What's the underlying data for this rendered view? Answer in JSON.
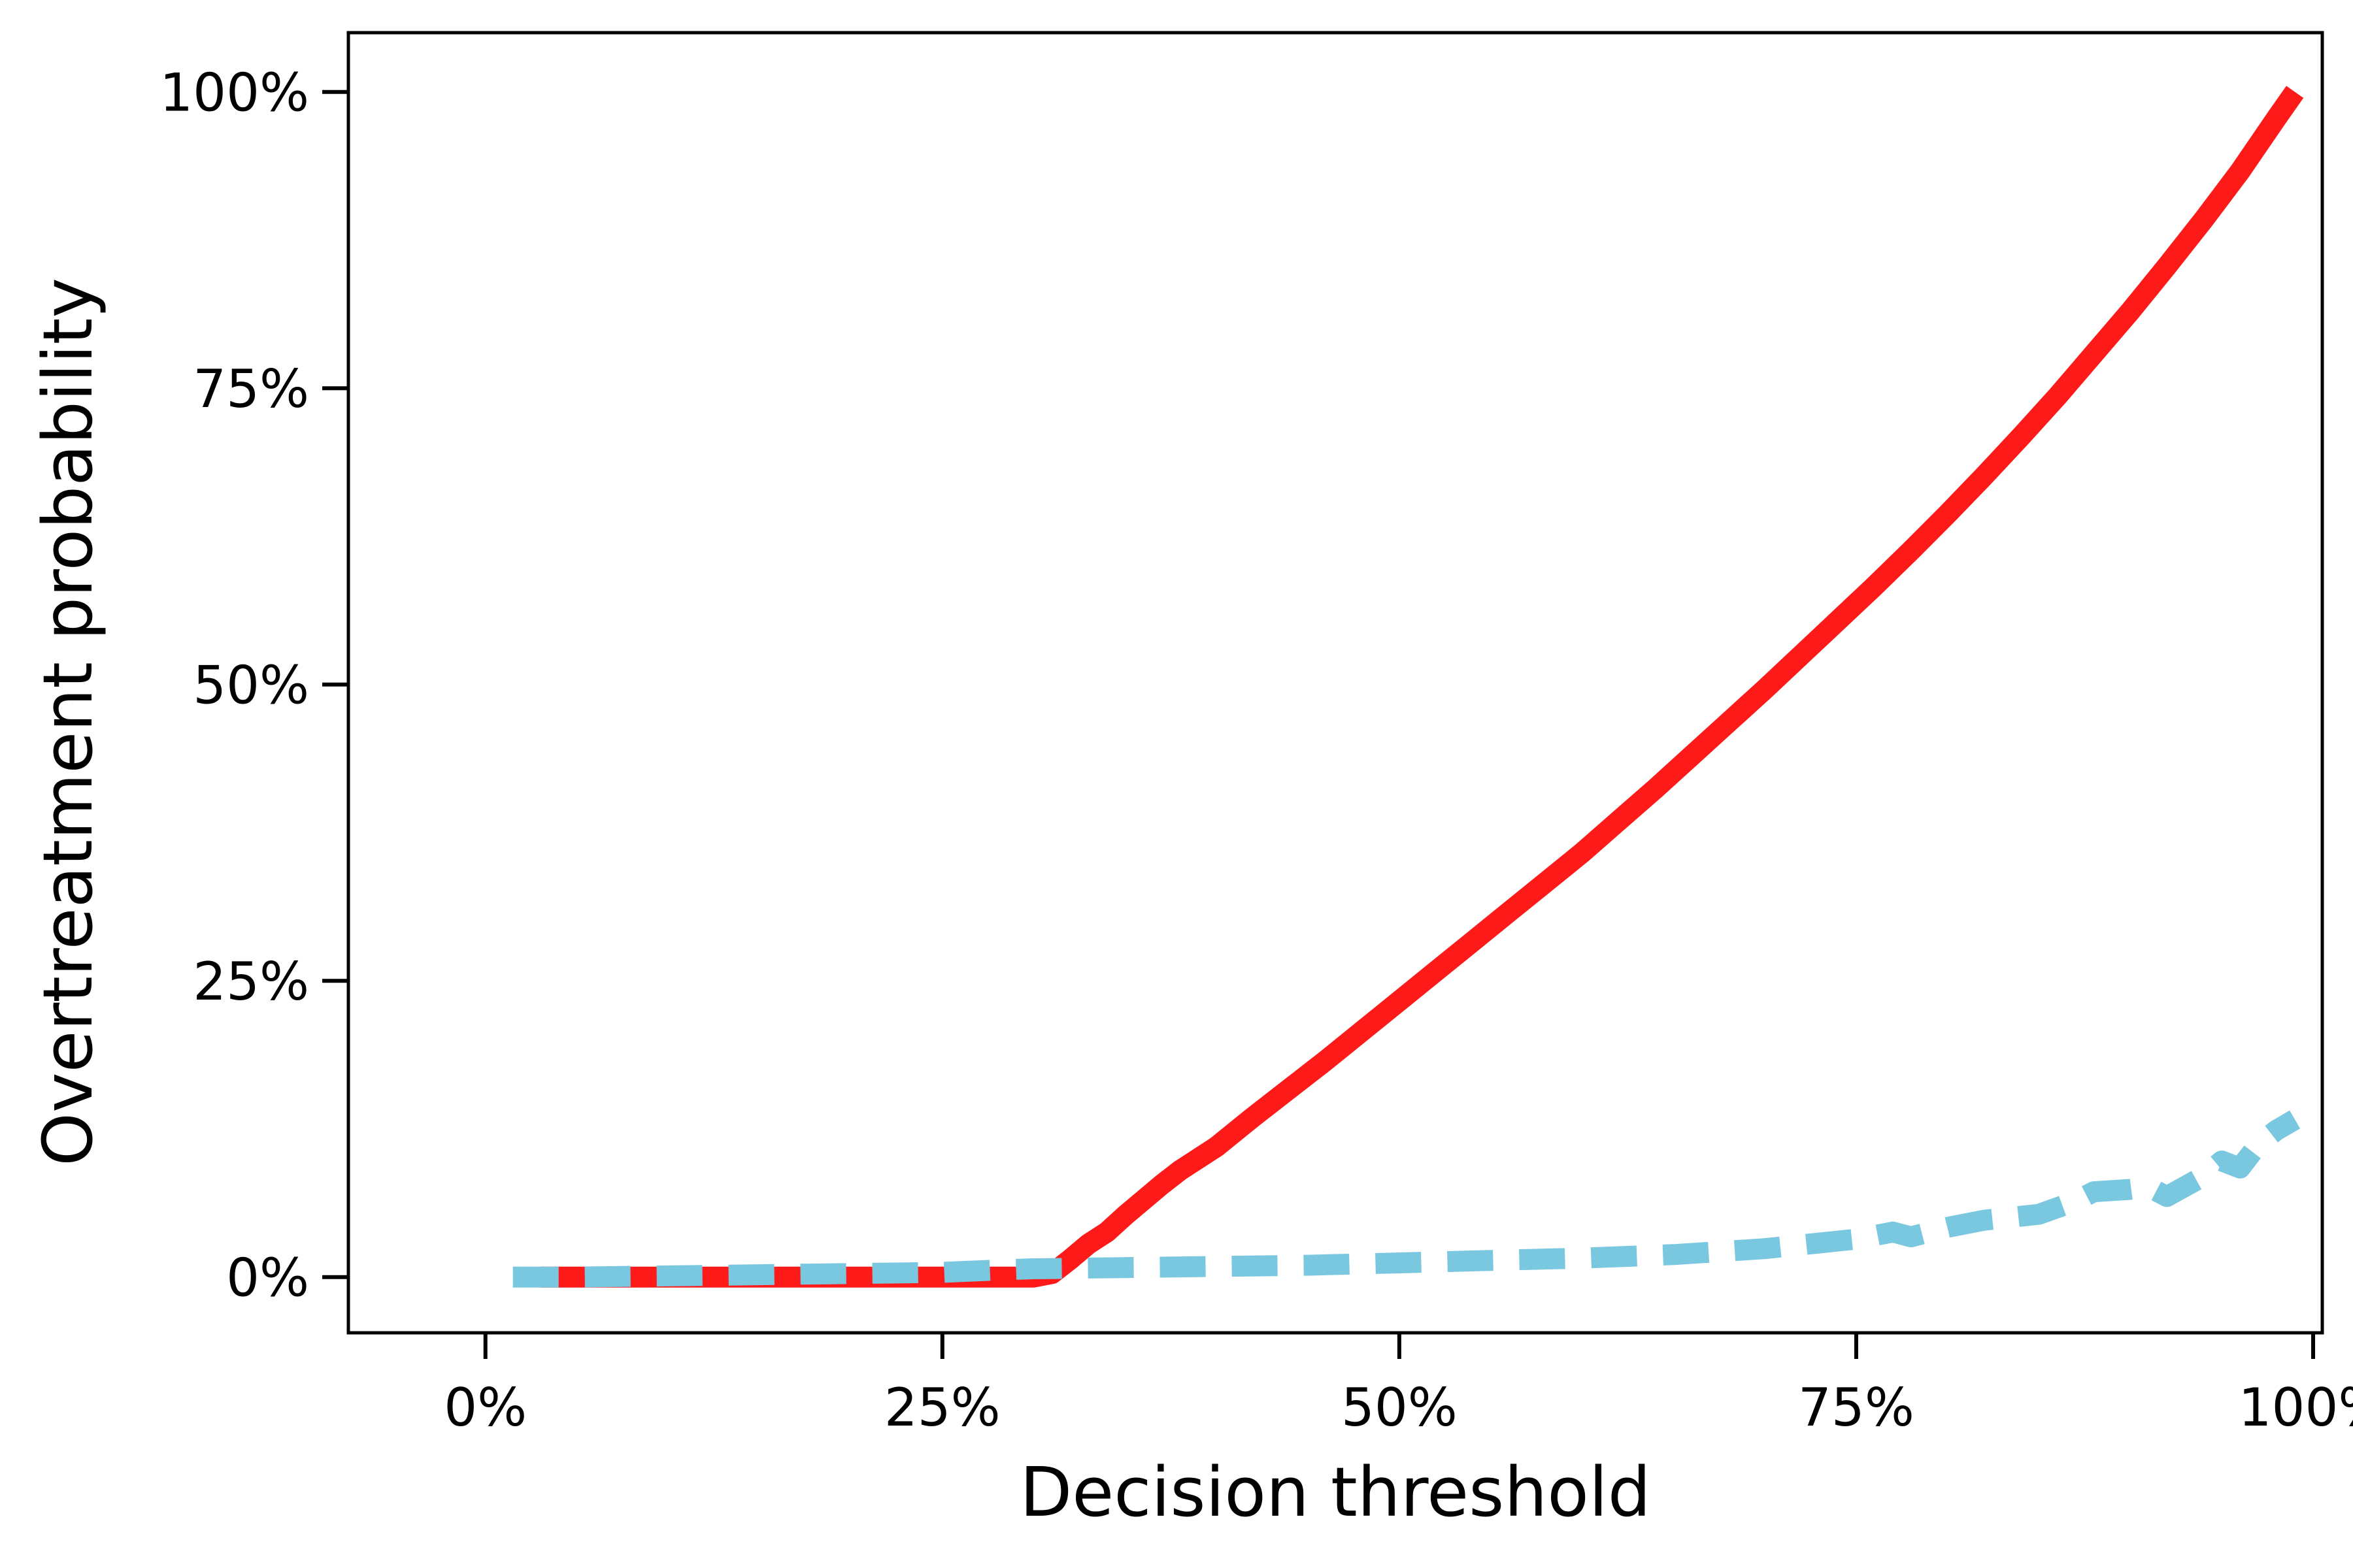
{
  "chart_data": {
    "type": "line",
    "title": "",
    "xlabel": "Decision threshold",
    "ylabel": "Overtreatment  probability",
    "xlim": [
      -7.5,
      100.5
    ],
    "ylim": [
      -4.7,
      105
    ],
    "xticks": [
      0,
      25,
      50,
      75,
      100
    ],
    "xtick_labels": [
      "0%",
      "25%",
      "50%",
      "75%",
      "100%"
    ],
    "yticks": [
      0,
      25,
      50,
      75,
      100
    ],
    "ytick_labels": [
      "0%",
      "25%",
      "50%",
      "75%",
      "100%"
    ],
    "grid": false,
    "series": [
      {
        "color": "#ff1a1a",
        "dashed": false,
        "x": [
          3,
          5,
          10,
          15,
          20,
          25,
          30,
          31,
          32,
          33,
          34,
          35,
          36,
          37,
          38,
          40,
          42,
          44,
          46,
          48,
          50,
          52,
          54,
          56,
          58,
          60,
          62,
          64,
          66,
          68,
          70,
          72,
          74,
          76,
          78,
          80,
          82,
          84,
          86,
          88,
          90,
          92,
          94,
          96,
          98,
          99
        ],
        "y": [
          0,
          0,
          0,
          0,
          0,
          0,
          0,
          0.3,
          1.5,
          2.8,
          3.8,
          5.2,
          6.5,
          7.8,
          9.0,
          11.0,
          13.5,
          15.9,
          18.3,
          20.8,
          23.3,
          25.8,
          28.3,
          30.8,
          33.3,
          35.8,
          38.5,
          41.2,
          44.0,
          46.8,
          49.6,
          52.5,
          55.4,
          58.3,
          61.3,
          64.4,
          67.6,
          70.9,
          74.3,
          77.9,
          81.5,
          85.3,
          89.2,
          93.3,
          97.8,
          100.0
        ]
      },
      {
        "color": "#7ac7e0",
        "dashed": true,
        "x": [
          1.5,
          5,
          10,
          15,
          20,
          25,
          28,
          30,
          35,
          40,
          45,
          50,
          55,
          60,
          65,
          70,
          75,
          77,
          78,
          80,
          82,
          85,
          87,
          88,
          90,
          91,
          92,
          94,
          95,
          96,
          97,
          98,
          99
        ],
        "y": [
          0,
          0,
          0.1,
          0.2,
          0.3,
          0.4,
          0.6,
          0.7,
          0.8,
          0.9,
          1.0,
          1.2,
          1.4,
          1.6,
          1.9,
          2.4,
          3.2,
          3.8,
          3.4,
          4.2,
          4.8,
          5.3,
          6.4,
          7.2,
          7.4,
          7.6,
          6.8,
          8.5,
          9.8,
          9.2,
          11.2,
          12.4,
          13.3
        ]
      }
    ]
  }
}
